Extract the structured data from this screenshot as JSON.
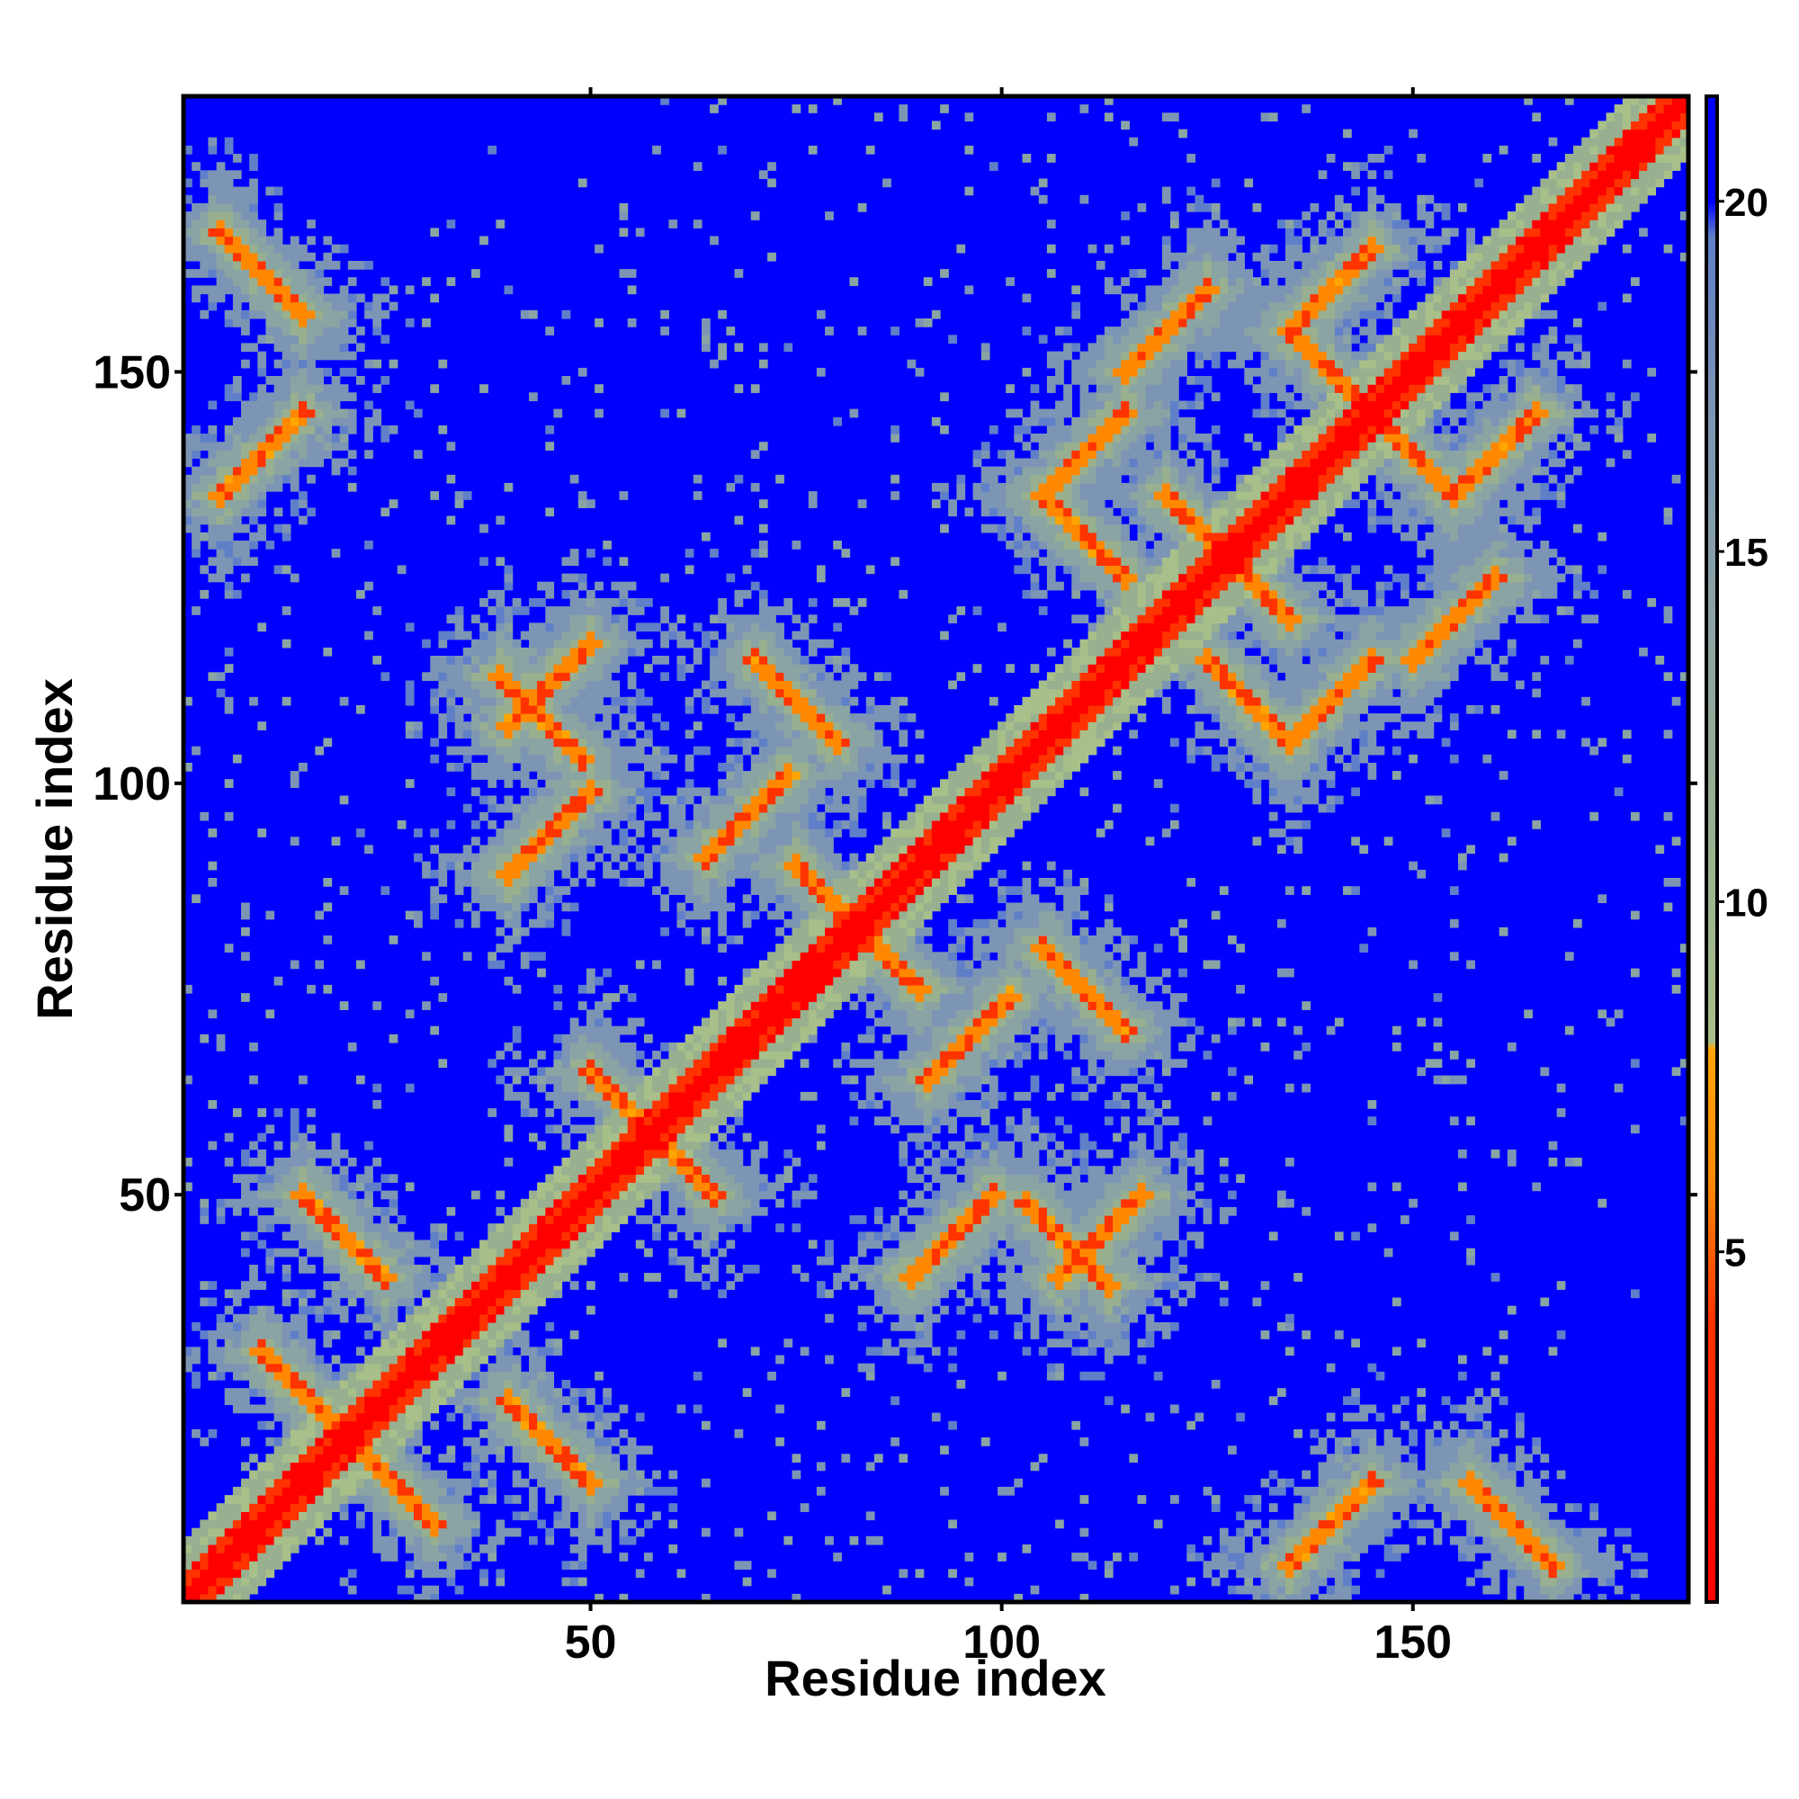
{
  "chart_data": {
    "type": "heatmap",
    "title": "",
    "xlabel": "Residue index",
    "ylabel": "Residue index",
    "xlim": [
      1,
      183
    ],
    "ylim": [
      1,
      183
    ],
    "x_ticks": [
      50,
      100,
      150
    ],
    "y_ticks": [
      50,
      100,
      150
    ],
    "x_tick_labels": [
      "50",
      "100",
      "150"
    ],
    "y_tick_labels": [
      "50",
      "100",
      "150"
    ],
    "matrix_size": 183,
    "value_range": [
      0,
      21.5
    ],
    "colorbar": {
      "ticks": [
        5,
        10,
        15,
        20
      ],
      "tick_labels": [
        "5",
        "10",
        "15",
        "20"
      ],
      "stops": [
        {
          "value": 0,
          "color": "#ff0000"
        },
        {
          "value": 4,
          "color": "#ff3300"
        },
        {
          "value": 6,
          "color": "#ff8800"
        },
        {
          "value": 7.9,
          "color": "#ffa500"
        },
        {
          "value": 8,
          "color": "#a8bf8a"
        },
        {
          "value": 11,
          "color": "#98b08f"
        },
        {
          "value": 14,
          "color": "#8aa4a4"
        },
        {
          "value": 17,
          "color": "#7d95b4"
        },
        {
          "value": 19.5,
          "color": "#5f7fc8"
        },
        {
          "value": 20,
          "color": "#0000ff"
        },
        {
          "value": 21.5,
          "color": "#0000ff"
        }
      ]
    },
    "structure": {
      "diagonal": true,
      "diagonal_band_width": 5,
      "antiparallel_contacts": [
        [
          26,
          15
        ],
        [
          45,
          20
        ],
        [
          60,
          55
        ],
        [
          80,
          85
        ],
        [
          108,
          44
        ],
        [
          125,
          130
        ],
        [
          140,
          150
        ],
        [
          162,
          10
        ],
        [
          110,
          75
        ],
        [
          130,
          110
        ]
      ],
      "parallel_contacts": [
        [
          10,
          140
        ],
        [
          45,
          112
        ],
        [
          45,
          94
        ],
        [
          69,
          96
        ],
        [
          110,
          140
        ],
        [
          120,
          155
        ],
        [
          140,
          160
        ]
      ],
      "noise_cutoff": 20
    },
    "colors": {
      "background": "#0000ff",
      "contact_close": "#ff0000",
      "contact_mid": "#ffa500",
      "halo": "#a8bf8a",
      "frame": "#000000"
    }
  }
}
